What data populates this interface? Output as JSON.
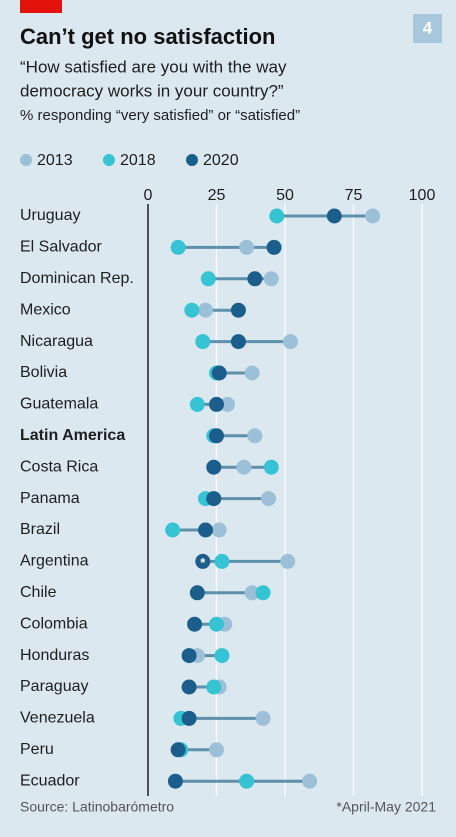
{
  "page_number": "4",
  "chart_data": {
    "type": "dot",
    "title": "Can’t get no satisfaction",
    "subtitle_lines": [
      "“How satisfied are you with the way",
      "democracy works in your country?”"
    ],
    "note": "% responding “very satisfied” or “satisfied”",
    "categories": [
      "Uruguay",
      "El Salvador",
      "Dominican Rep.",
      "Mexico",
      "Nicaragua",
      "Bolivia",
      "Guatemala",
      "Latin America",
      "Costa Rica",
      "Panama",
      "Brazil",
      "Argentina",
      "Chile",
      "Colombia",
      "Honduras",
      "Paraguay",
      "Venezuela",
      "Peru",
      "Ecuador"
    ],
    "bold_category": 7,
    "series": [
      {
        "name": "2013",
        "color": "#9cc0d7",
        "values": [
          82,
          36,
          45,
          21,
          52,
          38,
          29,
          39,
          35,
          44,
          26,
          51,
          38,
          28,
          18,
          26,
          42,
          25,
          59
        ]
      },
      {
        "name": "2018",
        "color": "#36c3d3",
        "values": [
          47,
          11,
          22,
          16,
          20,
          25,
          18,
          24,
          45,
          21,
          9,
          27,
          42,
          25,
          27,
          24,
          12,
          12,
          36
        ]
      },
      {
        "name": "2020",
        "color": "#1b5e8c",
        "values": [
          68,
          46,
          39,
          33,
          33,
          26,
          25,
          25,
          24,
          24,
          21,
          20,
          18,
          17,
          15,
          15,
          15,
          11,
          10
        ]
      }
    ],
    "marker_note": {
      "series": 2,
      "index": 11,
      "label": "*"
    },
    "xlim": [
      0,
      100
    ],
    "xticks": [
      0,
      25,
      50,
      75,
      100
    ],
    "grid": true,
    "source": "Source: Latinobarómetro",
    "footnote": "*April-May 2021"
  }
}
